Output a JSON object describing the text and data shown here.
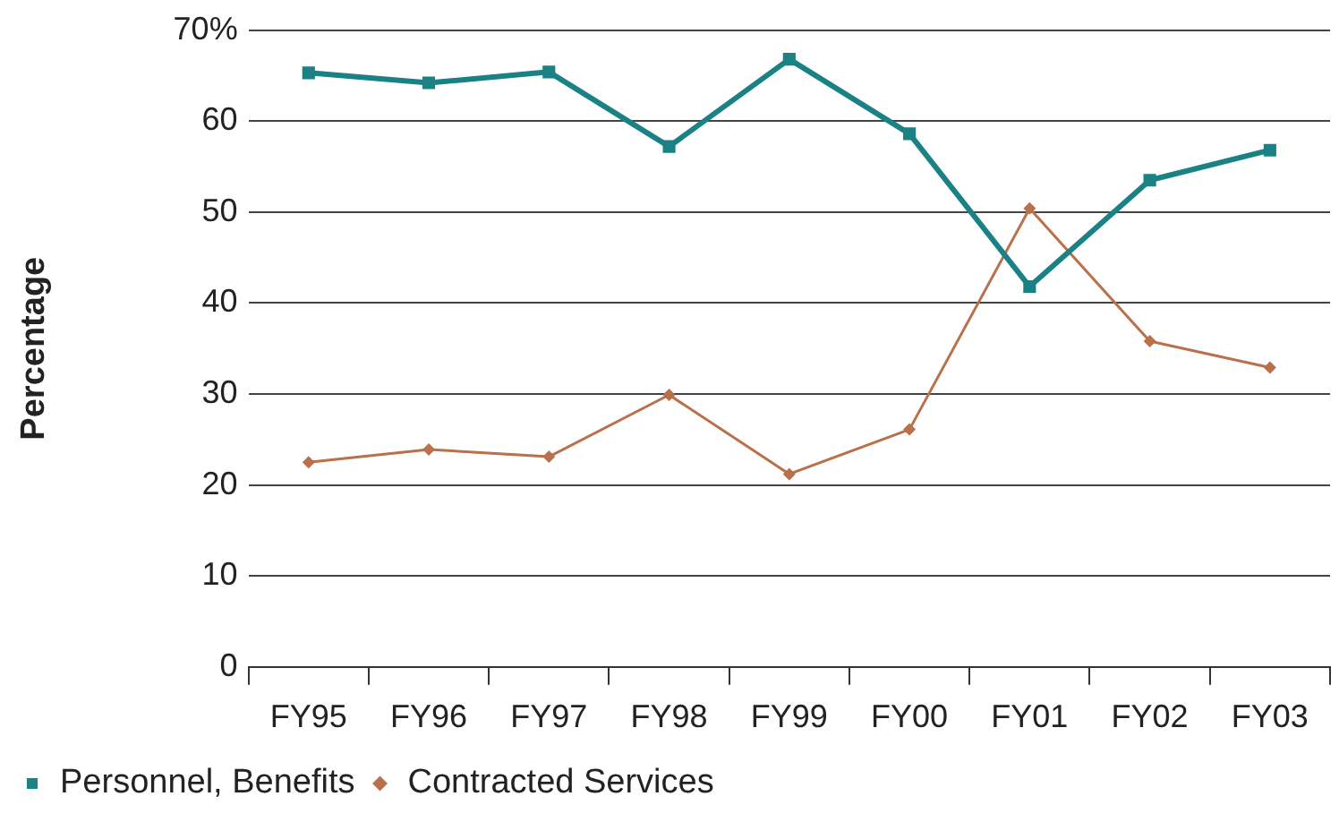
{
  "chart_data": {
    "type": "line",
    "ylabel": "Percentage",
    "categories": [
      "FY95",
      "FY96",
      "FY97",
      "FY98",
      "FY99",
      "FY00",
      "FY01",
      "FY02",
      "FY03"
    ],
    "series": [
      {
        "name": "Personnel, Benefits",
        "color": "#1a8285",
        "marker": "square",
        "values": [
          65.3,
          64.2,
          65.4,
          57.2,
          66.8,
          58.6,
          41.8,
          53.5,
          56.8
        ]
      },
      {
        "name": "Contracted Services",
        "color": "#b8714a",
        "marker": "diamond",
        "values": [
          22.5,
          23.9,
          23.1,
          29.9,
          21.2,
          26.1,
          50.4,
          35.8,
          32.9
        ]
      }
    ],
    "ylim": [
      0,
      70
    ],
    "yticks": [
      0,
      10,
      20,
      30,
      40,
      50,
      60,
      {
        "value": 70,
        "label": "70%"
      }
    ],
    "grid": "y",
    "legend": "bottom left"
  }
}
